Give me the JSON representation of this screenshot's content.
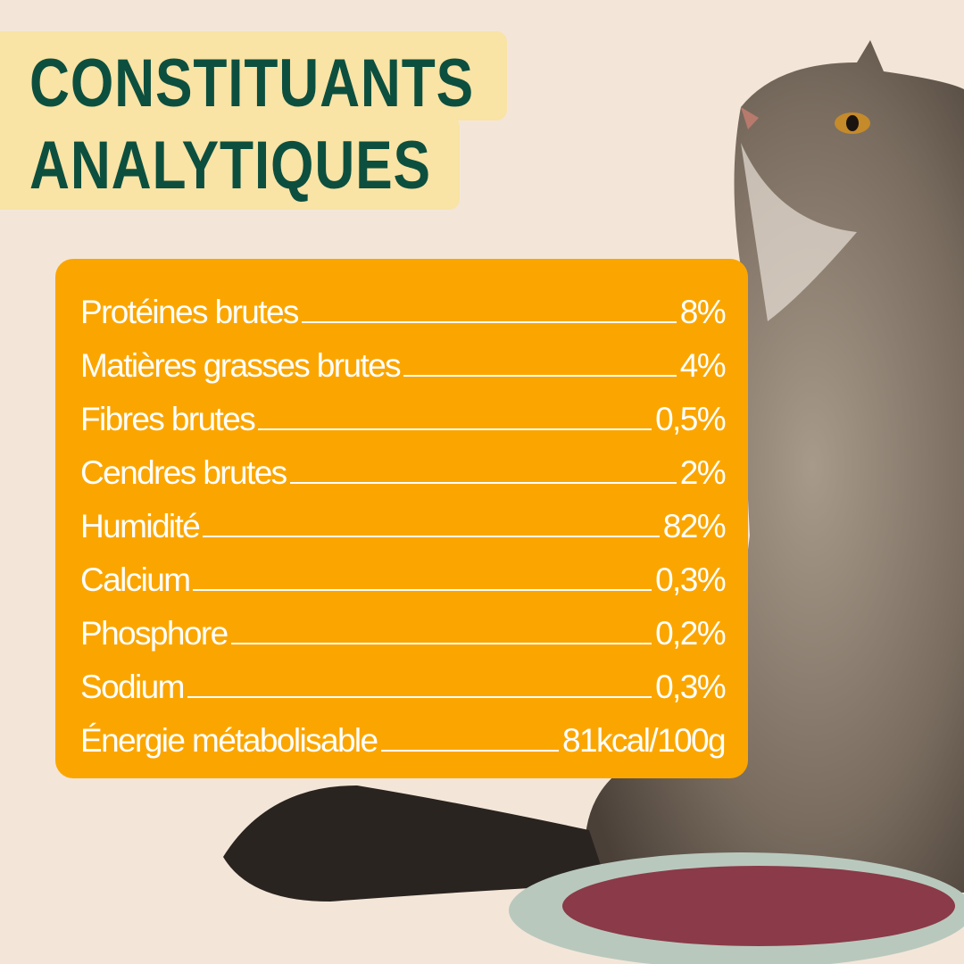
{
  "title": {
    "line1": "CONSTITUANTS",
    "line2": "ANALYTIQUES"
  },
  "colors": {
    "background": "#f3e6d8",
    "title_highlight": "#f9e3a5",
    "title_text": "#0d4f3e",
    "panel": "#fba600",
    "panel_text": "#ffffff"
  },
  "constituents": [
    {
      "label": "Protéines brutes",
      "value": "8%"
    },
    {
      "label": "Matières grasses brutes",
      "value": "4%"
    },
    {
      "label": "Fibres brutes",
      "value": "0,5%"
    },
    {
      "label": "Cendres brutes",
      "value": "2%"
    },
    {
      "label": "Humidité",
      "value": "82%"
    },
    {
      "label": "Calcium",
      "value": "0,3%"
    },
    {
      "label": "Phosphore",
      "value": "0,2%"
    },
    {
      "label": "Sodium",
      "value": "0,3%"
    },
    {
      "label": "Énergie métabolisable",
      "value": "81kcal/100g"
    }
  ]
}
